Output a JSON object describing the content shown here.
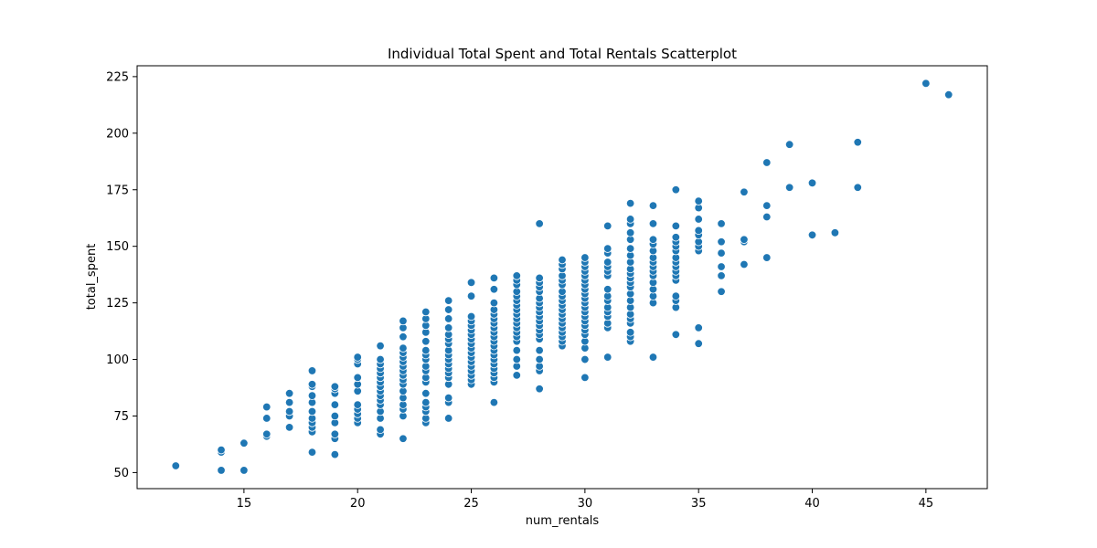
{
  "chart_data": {
    "type": "scatter",
    "title": "Individual Total Spent and Total Rentals Scatterplot",
    "xlabel": "num_rentals",
    "ylabel": "total_spent",
    "xlim": [
      10.3,
      47.7
    ],
    "ylim": [
      42.9,
      229.8
    ],
    "x_ticks": [
      15,
      20,
      25,
      30,
      35,
      40,
      45
    ],
    "y_ticks": [
      50,
      75,
      100,
      125,
      150,
      175,
      200,
      225
    ],
    "grid": false,
    "legend": "none",
    "point_color": "#1f77b4",
    "points": [
      [
        12,
        53
      ],
      [
        14,
        51
      ],
      [
        14,
        59
      ],
      [
        14,
        60
      ],
      [
        15,
        51
      ],
      [
        15,
        63
      ],
      [
        16,
        66
      ],
      [
        16,
        67
      ],
      [
        16,
        74
      ],
      [
        16,
        79
      ],
      [
        17,
        70
      ],
      [
        17,
        75
      ],
      [
        17,
        77
      ],
      [
        17,
        81
      ],
      [
        17,
        85
      ],
      [
        18,
        59
      ],
      [
        18,
        68
      ],
      [
        18,
        70
      ],
      [
        18,
        72
      ],
      [
        18,
        74
      ],
      [
        18,
        77
      ],
      [
        18,
        81
      ],
      [
        18,
        84
      ],
      [
        18,
        88
      ],
      [
        18,
        89
      ],
      [
        18,
        95
      ],
      [
        19,
        58
      ],
      [
        19,
        65
      ],
      [
        19,
        67
      ],
      [
        19,
        72
      ],
      [
        19,
        75
      ],
      [
        19,
        80
      ],
      [
        19,
        85
      ],
      [
        19,
        87
      ],
      [
        19,
        88
      ],
      [
        20,
        72
      ],
      [
        20,
        74
      ],
      [
        20,
        76
      ],
      [
        20,
        78
      ],
      [
        20,
        80
      ],
      [
        20,
        86
      ],
      [
        20,
        89
      ],
      [
        20,
        92
      ],
      [
        20,
        98
      ],
      [
        20,
        100
      ],
      [
        20,
        101
      ],
      [
        21,
        67
      ],
      [
        21,
        69
      ],
      [
        21,
        74
      ],
      [
        21,
        77
      ],
      [
        21,
        80
      ],
      [
        21,
        82
      ],
      [
        21,
        84
      ],
      [
        21,
        86
      ],
      [
        21,
        88
      ],
      [
        21,
        90
      ],
      [
        21,
        92
      ],
      [
        21,
        94
      ],
      [
        21,
        96
      ],
      [
        21,
        98
      ],
      [
        21,
        100
      ],
      [
        21,
        106
      ],
      [
        22,
        65
      ],
      [
        22,
        75
      ],
      [
        22,
        78
      ],
      [
        22,
        80
      ],
      [
        22,
        83
      ],
      [
        22,
        86
      ],
      [
        22,
        89
      ],
      [
        22,
        91
      ],
      [
        22,
        93
      ],
      [
        22,
        95
      ],
      [
        22,
        97
      ],
      [
        22,
        99
      ],
      [
        22,
        101
      ],
      [
        22,
        103
      ],
      [
        22,
        105
      ],
      [
        22,
        110
      ],
      [
        22,
        114
      ],
      [
        22,
        117
      ],
      [
        23,
        72
      ],
      [
        23,
        74
      ],
      [
        23,
        77
      ],
      [
        23,
        79
      ],
      [
        23,
        81
      ],
      [
        23,
        85
      ],
      [
        23,
        90
      ],
      [
        23,
        92
      ],
      [
        23,
        95
      ],
      [
        23,
        97
      ],
      [
        23,
        100
      ],
      [
        23,
        102
      ],
      [
        23,
        104
      ],
      [
        23,
        108
      ],
      [
        23,
        112
      ],
      [
        23,
        115
      ],
      [
        23,
        118
      ],
      [
        23,
        121
      ],
      [
        24,
        74
      ],
      [
        24,
        81
      ],
      [
        24,
        83
      ],
      [
        24,
        89
      ],
      [
        24,
        92
      ],
      [
        24,
        94
      ],
      [
        24,
        96
      ],
      [
        24,
        98
      ],
      [
        24,
        100
      ],
      [
        24,
        102
      ],
      [
        24,
        104
      ],
      [
        24,
        107
      ],
      [
        24,
        109
      ],
      [
        24,
        111
      ],
      [
        24,
        114
      ],
      [
        24,
        118
      ],
      [
        24,
        122
      ],
      [
        24,
        126
      ],
      [
        25,
        89
      ],
      [
        25,
        91
      ],
      [
        25,
        93
      ],
      [
        25,
        95
      ],
      [
        25,
        97
      ],
      [
        25,
        99
      ],
      [
        25,
        101
      ],
      [
        25,
        103
      ],
      [
        25,
        105
      ],
      [
        25,
        107
      ],
      [
        25,
        109
      ],
      [
        25,
        111
      ],
      [
        25,
        113
      ],
      [
        25,
        115
      ],
      [
        25,
        117
      ],
      [
        25,
        119
      ],
      [
        25,
        128
      ],
      [
        25,
        134
      ],
      [
        26,
        81
      ],
      [
        26,
        90
      ],
      [
        26,
        92
      ],
      [
        26,
        94
      ],
      [
        26,
        96
      ],
      [
        26,
        98
      ],
      [
        26,
        100
      ],
      [
        26,
        102
      ],
      [
        26,
        104
      ],
      [
        26,
        106
      ],
      [
        26,
        108
      ],
      [
        26,
        110
      ],
      [
        26,
        112
      ],
      [
        26,
        114
      ],
      [
        26,
        116
      ],
      [
        26,
        118
      ],
      [
        26,
        120
      ],
      [
        26,
        122
      ],
      [
        26,
        125
      ],
      [
        26,
        131
      ],
      [
        26,
        136
      ],
      [
        27,
        93
      ],
      [
        27,
        97
      ],
      [
        27,
        100
      ],
      [
        27,
        104
      ],
      [
        27,
        108
      ],
      [
        27,
        110
      ],
      [
        27,
        112
      ],
      [
        27,
        114
      ],
      [
        27,
        116
      ],
      [
        27,
        118
      ],
      [
        27,
        120
      ],
      [
        27,
        122
      ],
      [
        27,
        124
      ],
      [
        27,
        126
      ],
      [
        27,
        128
      ],
      [
        27,
        130
      ],
      [
        27,
        133
      ],
      [
        27,
        135
      ],
      [
        27,
        137
      ],
      [
        28,
        87
      ],
      [
        28,
        95
      ],
      [
        28,
        97
      ],
      [
        28,
        100
      ],
      [
        28,
        104
      ],
      [
        28,
        109
      ],
      [
        28,
        111
      ],
      [
        28,
        113
      ],
      [
        28,
        115
      ],
      [
        28,
        117
      ],
      [
        28,
        119
      ],
      [
        28,
        121
      ],
      [
        28,
        123
      ],
      [
        28,
        125
      ],
      [
        28,
        127
      ],
      [
        28,
        130
      ],
      [
        28,
        132
      ],
      [
        28,
        134
      ],
      [
        28,
        136
      ],
      [
        28,
        160
      ],
      [
        29,
        106
      ],
      [
        29,
        108
      ],
      [
        29,
        110
      ],
      [
        29,
        112
      ],
      [
        29,
        114
      ],
      [
        29,
        116
      ],
      [
        29,
        118
      ],
      [
        29,
        120
      ],
      [
        29,
        122
      ],
      [
        29,
        124
      ],
      [
        29,
        126
      ],
      [
        29,
        128
      ],
      [
        29,
        130
      ],
      [
        29,
        133
      ],
      [
        29,
        135
      ],
      [
        29,
        137
      ],
      [
        29,
        140
      ],
      [
        29,
        142
      ],
      [
        29,
        144
      ],
      [
        30,
        92
      ],
      [
        30,
        100
      ],
      [
        30,
        105
      ],
      [
        30,
        108
      ],
      [
        30,
        111
      ],
      [
        30,
        113
      ],
      [
        30,
        115
      ],
      [
        30,
        117
      ],
      [
        30,
        119
      ],
      [
        30,
        121
      ],
      [
        30,
        123
      ],
      [
        30,
        125
      ],
      [
        30,
        127
      ],
      [
        30,
        129
      ],
      [
        30,
        131
      ],
      [
        30,
        133
      ],
      [
        30,
        135
      ],
      [
        30,
        137
      ],
      [
        30,
        139
      ],
      [
        30,
        141
      ],
      [
        30,
        143
      ],
      [
        30,
        145
      ],
      [
        31,
        101
      ],
      [
        31,
        114
      ],
      [
        31,
        116
      ],
      [
        31,
        119
      ],
      [
        31,
        121
      ],
      [
        31,
        123
      ],
      [
        31,
        126
      ],
      [
        31,
        128
      ],
      [
        31,
        131
      ],
      [
        31,
        137
      ],
      [
        31,
        139
      ],
      [
        31,
        141
      ],
      [
        31,
        143
      ],
      [
        31,
        147
      ],
      [
        31,
        149
      ],
      [
        31,
        159
      ],
      [
        32,
        108
      ],
      [
        32,
        110
      ],
      [
        32,
        112
      ],
      [
        32,
        116
      ],
      [
        32,
        118
      ],
      [
        32,
        120
      ],
      [
        32,
        123
      ],
      [
        32,
        126
      ],
      [
        32,
        129
      ],
      [
        32,
        132
      ],
      [
        32,
        134
      ],
      [
        32,
        136
      ],
      [
        32,
        138
      ],
      [
        32,
        140
      ],
      [
        32,
        143
      ],
      [
        32,
        146
      ],
      [
        32,
        149
      ],
      [
        32,
        153
      ],
      [
        32,
        156
      ],
      [
        32,
        160
      ],
      [
        32,
        162
      ],
      [
        32,
        169
      ],
      [
        33,
        101
      ],
      [
        33,
        125
      ],
      [
        33,
        128
      ],
      [
        33,
        131
      ],
      [
        33,
        134
      ],
      [
        33,
        137
      ],
      [
        33,
        139
      ],
      [
        33,
        141
      ],
      [
        33,
        143
      ],
      [
        33,
        145
      ],
      [
        33,
        148
      ],
      [
        33,
        151
      ],
      [
        33,
        153
      ],
      [
        33,
        160
      ],
      [
        33,
        168
      ],
      [
        34,
        111
      ],
      [
        34,
        123
      ],
      [
        34,
        126
      ],
      [
        34,
        128
      ],
      [
        34,
        135
      ],
      [
        34,
        137
      ],
      [
        34,
        139
      ],
      [
        34,
        141
      ],
      [
        34,
        143
      ],
      [
        34,
        145
      ],
      [
        34,
        148
      ],
      [
        34,
        150
      ],
      [
        34,
        152
      ],
      [
        34,
        154
      ],
      [
        34,
        159
      ],
      [
        34,
        175
      ],
      [
        35,
        107
      ],
      [
        35,
        114
      ],
      [
        35,
        148
      ],
      [
        35,
        150
      ],
      [
        35,
        152
      ],
      [
        35,
        155
      ],
      [
        35,
        157
      ],
      [
        35,
        162
      ],
      [
        35,
        167
      ],
      [
        35,
        170
      ],
      [
        36,
        130
      ],
      [
        36,
        137
      ],
      [
        36,
        141
      ],
      [
        36,
        147
      ],
      [
        36,
        152
      ],
      [
        36,
        160
      ],
      [
        37,
        142
      ],
      [
        37,
        152
      ],
      [
        37,
        153
      ],
      [
        37,
        174
      ],
      [
        38,
        145
      ],
      [
        38,
        163
      ],
      [
        38,
        168
      ],
      [
        38,
        187
      ],
      [
        39,
        176
      ],
      [
        39,
        195
      ],
      [
        40,
        155
      ],
      [
        40,
        178
      ],
      [
        41,
        156
      ],
      [
        42,
        176
      ],
      [
        42,
        196
      ],
      [
        45,
        222
      ],
      [
        46,
        217
      ]
    ]
  }
}
